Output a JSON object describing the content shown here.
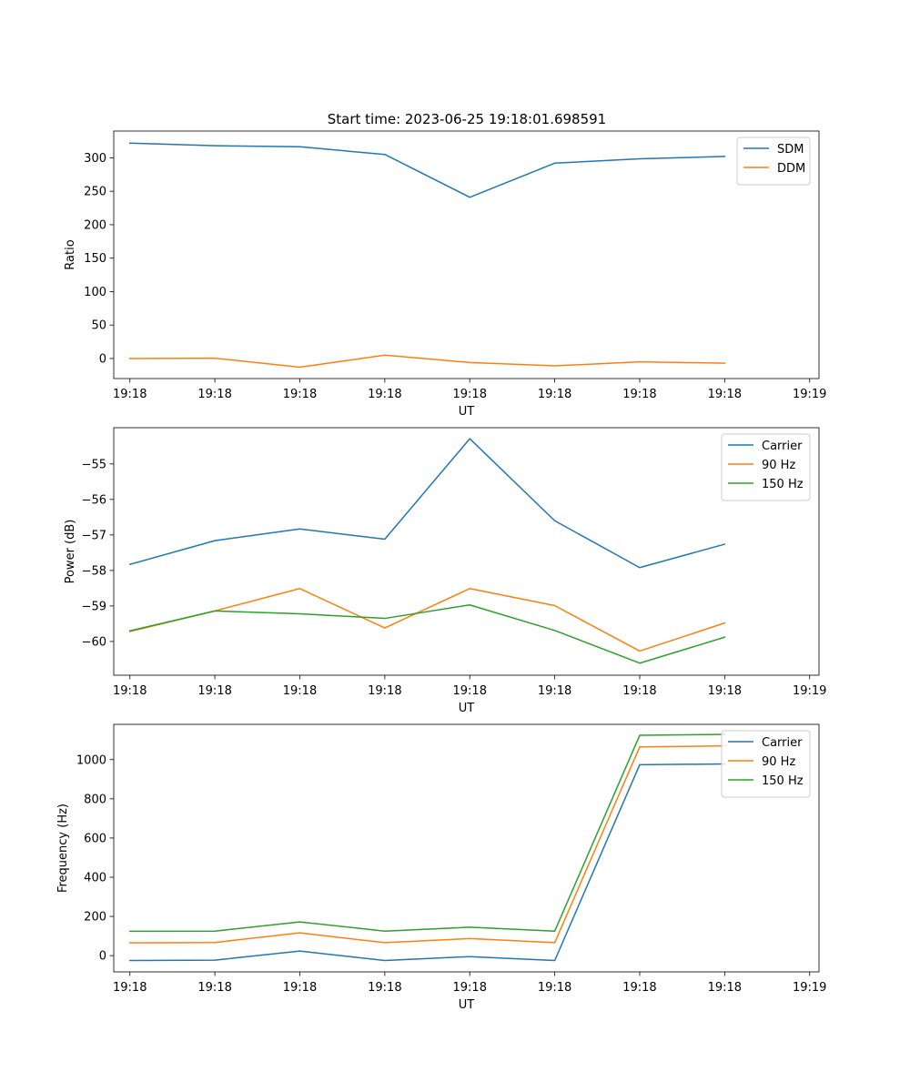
{
  "figure": {
    "title": "Start time: 2023-06-25 19:18:01.698591"
  },
  "colors": {
    "blue": "#1f77b4",
    "orange": "#ff7f0e",
    "green": "#2ca02c"
  },
  "chart_data": [
    {
      "type": "line",
      "title": "Start time: 2023-06-25 19:18:01.698591",
      "xlabel": "UT",
      "ylabel": "Ratio",
      "x": [
        1,
        2,
        3,
        4,
        5,
        6,
        7,
        8
      ],
      "xlim": [
        0.81,
        9.11
      ],
      "xticks": [
        1,
        2,
        3,
        4,
        5,
        6,
        7,
        8,
        9
      ],
      "xtick_labels": [
        "19:18",
        "19:18",
        "19:18",
        "19:18",
        "19:18",
        "19:18",
        "19:18",
        "19:18",
        "19:19"
      ],
      "ylim": [
        -30,
        340
      ],
      "yticks": [
        0,
        50,
        100,
        150,
        200,
        250,
        300
      ],
      "ytick_labels": [
        "0",
        "50",
        "100",
        "150",
        "200",
        "250",
        "300"
      ],
      "legend_position": "top-right",
      "grid": false,
      "series": [
        {
          "name": "SDM",
          "color": "#1f77b4",
          "values": [
            322,
            318,
            316.5,
            305,
            241,
            292,
            298.5,
            302
          ]
        },
        {
          "name": "DDM",
          "color": "#ff7f0e",
          "values": [
            0,
            0.5,
            -13,
            5,
            -6,
            -11,
            -5,
            -7
          ]
        }
      ]
    },
    {
      "type": "line",
      "title": "",
      "xlabel": "UT",
      "ylabel": "Power (dB)",
      "x": [
        1,
        2,
        3,
        4,
        5,
        6,
        7,
        8
      ],
      "xlim": [
        0.81,
        9.11
      ],
      "xticks": [
        1,
        2,
        3,
        4,
        5,
        6,
        7,
        8,
        9
      ],
      "xtick_labels": [
        "19:18",
        "19:18",
        "19:18",
        "19:18",
        "19:18",
        "19:18",
        "19:18",
        "19:18",
        "19:19"
      ],
      "ylim": [
        -60.95,
        -53.98
      ],
      "yticks": [
        -55,
        -56,
        -57,
        -58,
        -59,
        -60
      ],
      "ytick_labels": [
        "−55",
        "−56",
        "−57",
        "−58",
        "−59",
        "−60"
      ],
      "legend_position": "top-right",
      "grid": false,
      "series": [
        {
          "name": "Carrier",
          "color": "#1f77b4",
          "values": [
            -57.83,
            -57.16,
            -56.83,
            -57.12,
            -54.29,
            -56.6,
            -57.92,
            -57.26
          ]
        },
        {
          "name": "90 Hz",
          "color": "#ff7f0e",
          "values": [
            -59.72,
            -59.14,
            -58.51,
            -59.62,
            -58.51,
            -58.99,
            -60.27,
            -59.48
          ]
        },
        {
          "name": "150 Hz",
          "color": "#2ca02c",
          "values": [
            -59.7,
            -59.14,
            -59.22,
            -59.35,
            -58.97,
            -59.69,
            -60.61,
            -59.88
          ]
        }
      ]
    },
    {
      "type": "line",
      "title": "",
      "xlabel": "UT",
      "ylabel": "Frequency (Hz)",
      "x": [
        1,
        2,
        3,
        4,
        5,
        6,
        7,
        8
      ],
      "xlim": [
        0.81,
        9.11
      ],
      "xticks": [
        1,
        2,
        3,
        4,
        5,
        6,
        7,
        8,
        9
      ],
      "xtick_labels": [
        "19:18",
        "19:18",
        "19:18",
        "19:18",
        "19:18",
        "19:18",
        "19:18",
        "19:18",
        "19:19"
      ],
      "ylim": [
        -83,
        1180
      ],
      "yticks": [
        0,
        200,
        400,
        600,
        800,
        1000
      ],
      "ytick_labels": [
        "0",
        "200",
        "400",
        "600",
        "800",
        "1000"
      ],
      "legend_position": "top-right",
      "grid": false,
      "series": [
        {
          "name": "Carrier",
          "color": "#1f77b4",
          "values": [
            -25,
            -23,
            23,
            -25,
            -5,
            -25,
            974,
            978
          ]
        },
        {
          "name": "90 Hz",
          "color": "#ff7f0e",
          "values": [
            65,
            67,
            116,
            66,
            87,
            66,
            1065,
            1070
          ]
        },
        {
          "name": "150 Hz",
          "color": "#2ca02c",
          "values": [
            124,
            125,
            172,
            125,
            145,
            125,
            1124,
            1129
          ]
        }
      ]
    }
  ]
}
